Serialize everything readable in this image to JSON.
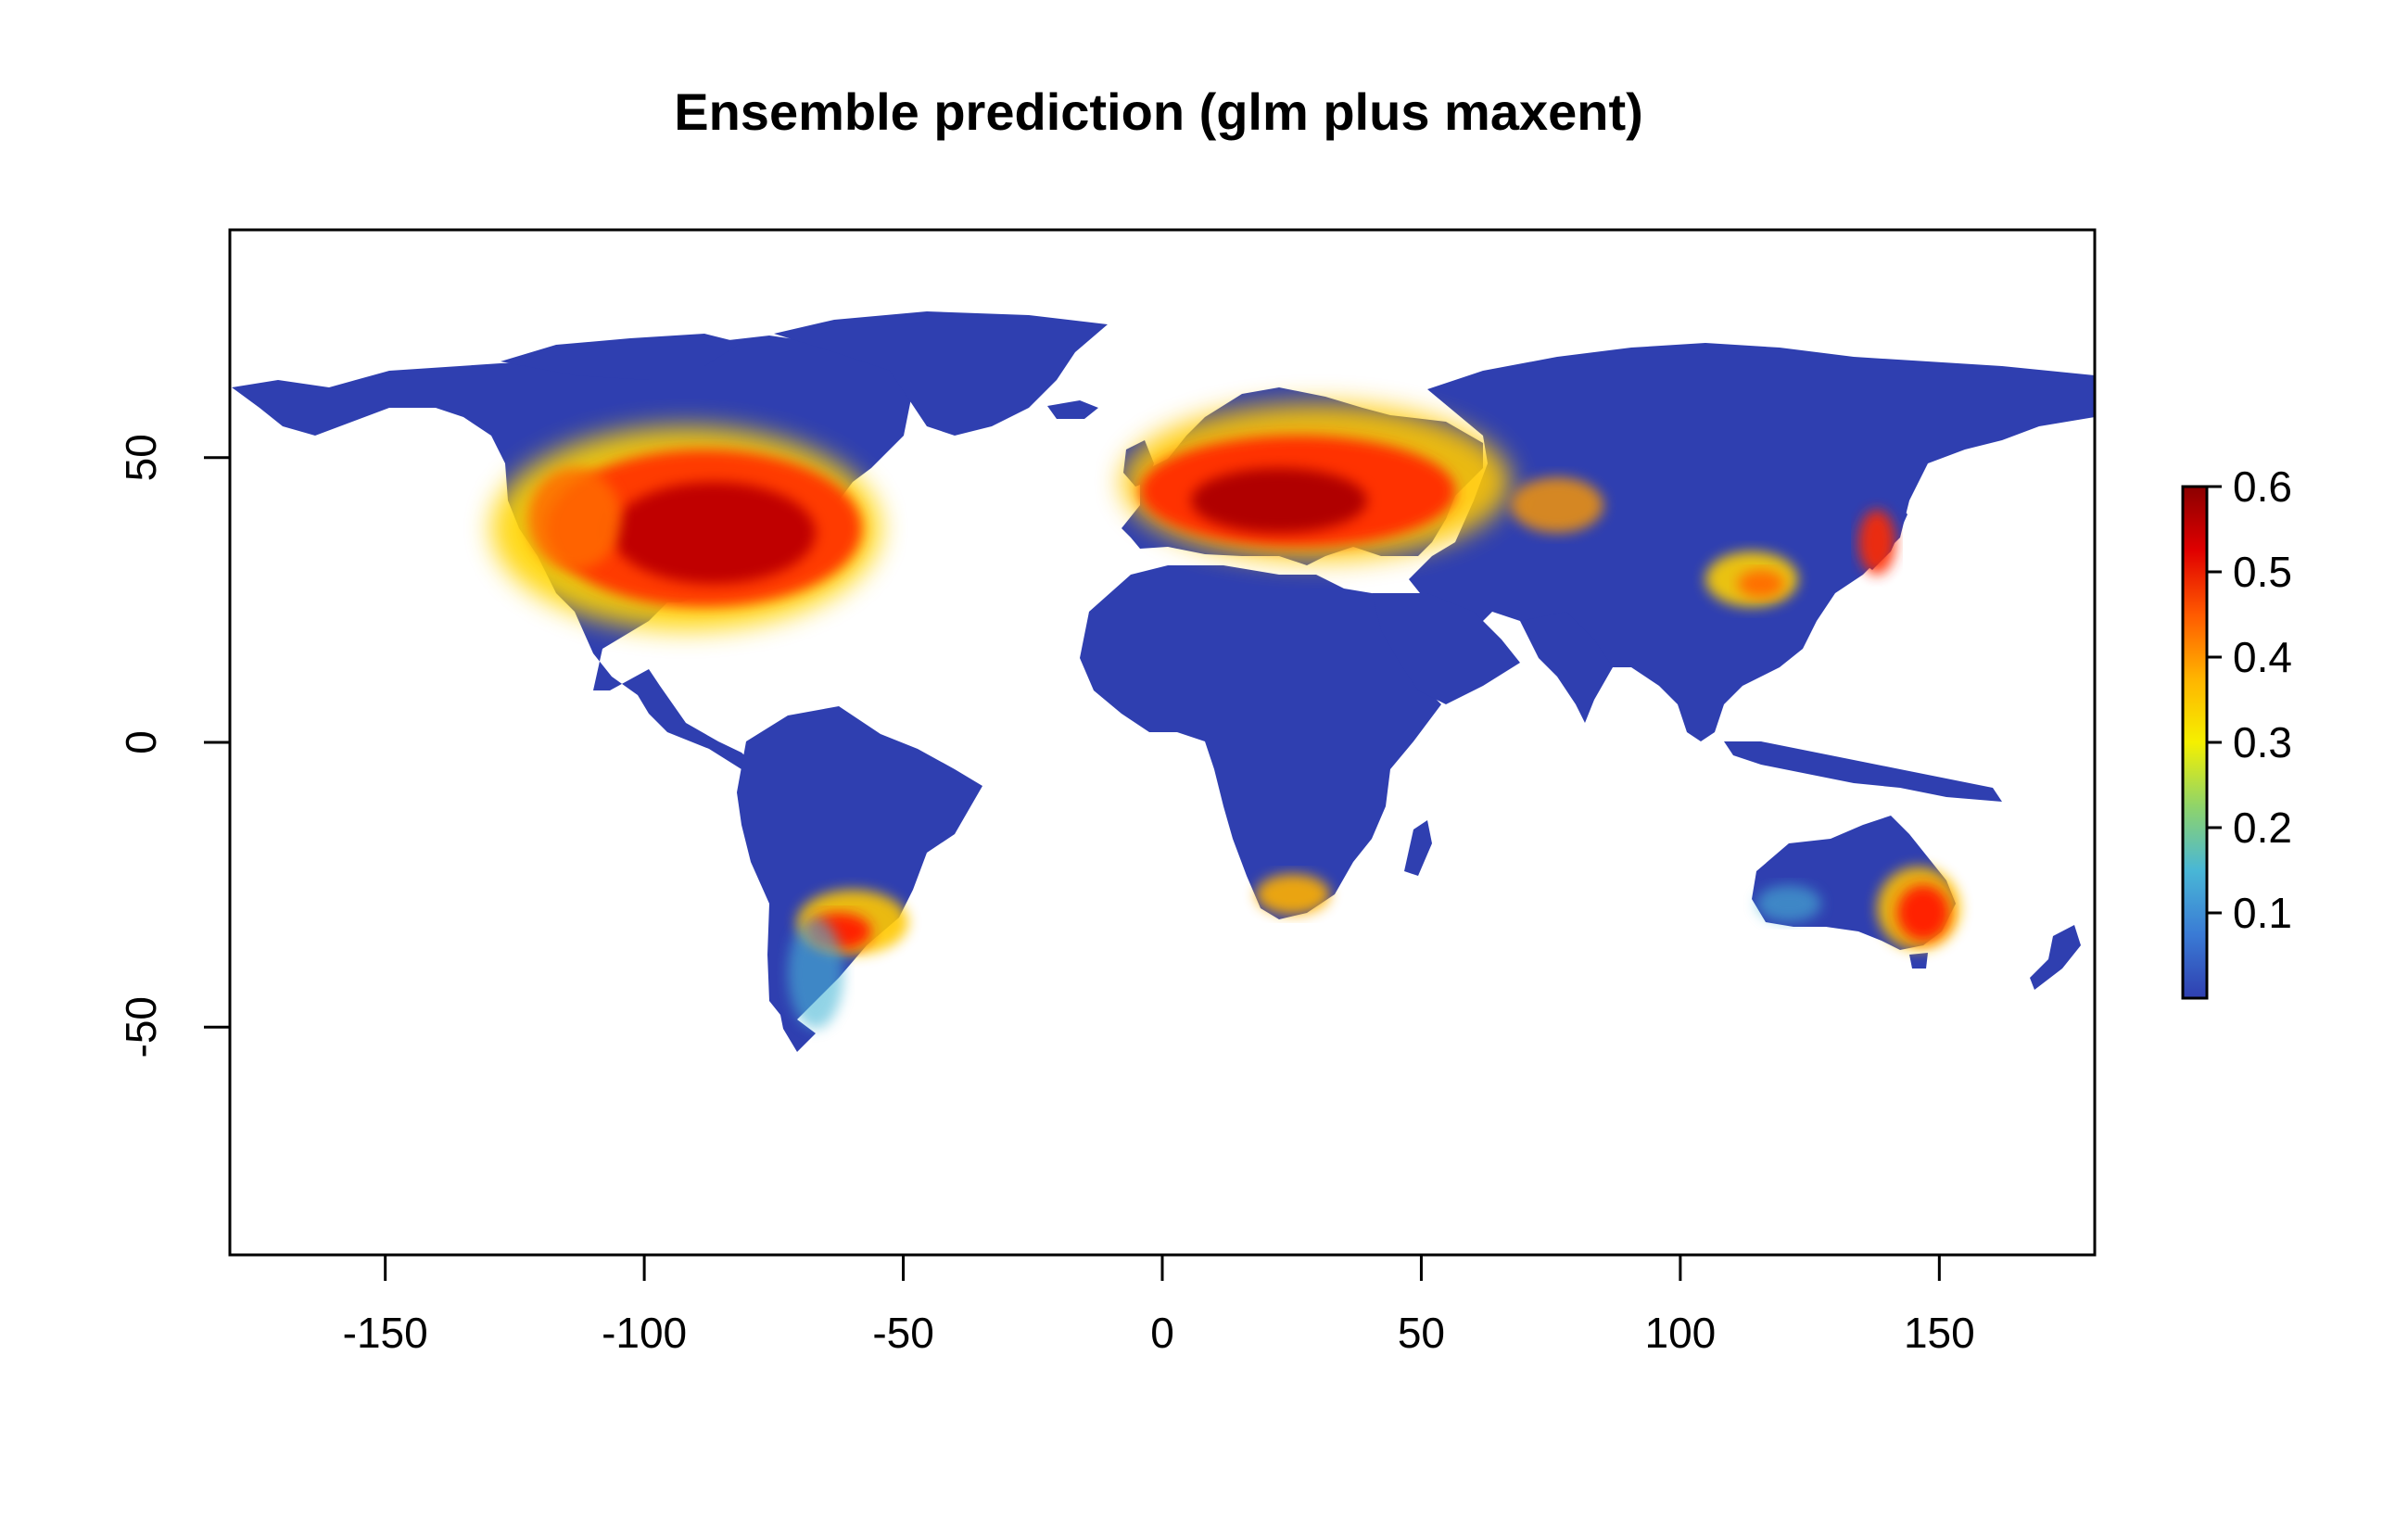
{
  "title": "Ensemble prediction (glm plus maxent)",
  "map": {
    "type": "raster",
    "xlim": [
      -180,
      180
    ],
    "ylim": [
      -90,
      90
    ],
    "x_ticks": [
      -150,
      -100,
      -50,
      0,
      50,
      100,
      150
    ],
    "y_ticks": [
      50,
      0,
      -50
    ],
    "colors": {
      "background": "#ffffff",
      "low": "#2f3fb0",
      "high": "#8b0000"
    }
  },
  "legend": {
    "position": "right",
    "ticks": [
      "0.6",
      "0.5",
      "0.4",
      "0.3",
      "0.2",
      "0.1"
    ],
    "values": [
      0.6,
      0.5,
      0.4,
      0.3,
      0.2,
      0.1
    ],
    "range": [
      0,
      0.6
    ],
    "colormap": [
      "#2f3fb0",
      "#3a7bd5",
      "#49b7d6",
      "#8fd46a",
      "#f5f000",
      "#ffb400",
      "#ff5a00",
      "#e00000",
      "#8b0000"
    ]
  }
}
